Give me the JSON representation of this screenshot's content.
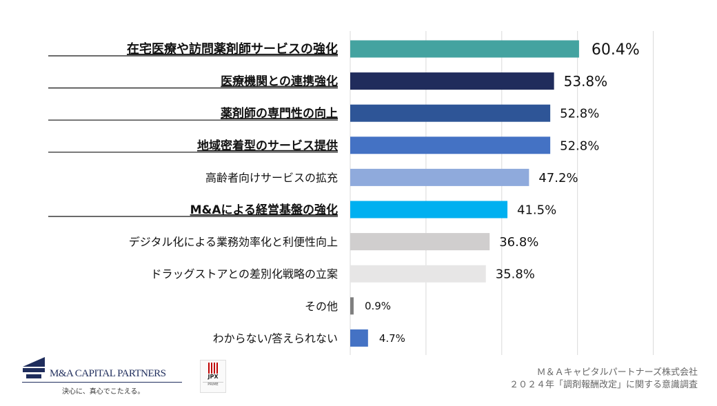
{
  "chart_data": {
    "type": "bar",
    "orientation": "horizontal",
    "categories": [
      "在宅医療や訪問薬剤師サービスの強化",
      "医療機関との連携強化",
      "薬剤師の専門性の向上",
      "地域密着型のサービス提供",
      "高齢者向けサービスの拡充",
      "M&Aによる経営基盤の強化",
      "デジタル化による業務効率化と利便性向上",
      "ドラッグストアとの差別化戦略の立案",
      "その他",
      "わからない/答えられない"
    ],
    "values": [
      60.4,
      53.8,
      52.8,
      52.8,
      47.2,
      41.5,
      36.8,
      35.8,
      0.9,
      4.7
    ],
    "value_labels": [
      "60.4%",
      "53.8%",
      "52.8%",
      "52.8%",
      "47.2%",
      "41.5%",
      "36.8%",
      "35.8%",
      "0.9%",
      "4.7%"
    ],
    "underlined": [
      true,
      true,
      true,
      true,
      false,
      true,
      false,
      false,
      false,
      false
    ],
    "colors": [
      "#44a3a0",
      "#202c5c",
      "#2e5597",
      "#4472c4",
      "#8faadc",
      "#00b0f0",
      "#d0cece",
      "#e7e6e6",
      "#7f7f7f",
      "#4472c4"
    ],
    "xlim": [
      0,
      80
    ],
    "grid": true,
    "unit": "%"
  },
  "footer": {
    "logo_name": "M&A CAPITAL PARTNERS",
    "logo_tagline": "決心に、真心でこたえる。",
    "jpx_label": "JPX",
    "jpx_sub": "PRIME",
    "source_line1": "Ｍ＆Ａキャピタルパートナーズ株式会社",
    "source_line2": "２０２４年「調剤報酬改定」に関する意識調査"
  }
}
